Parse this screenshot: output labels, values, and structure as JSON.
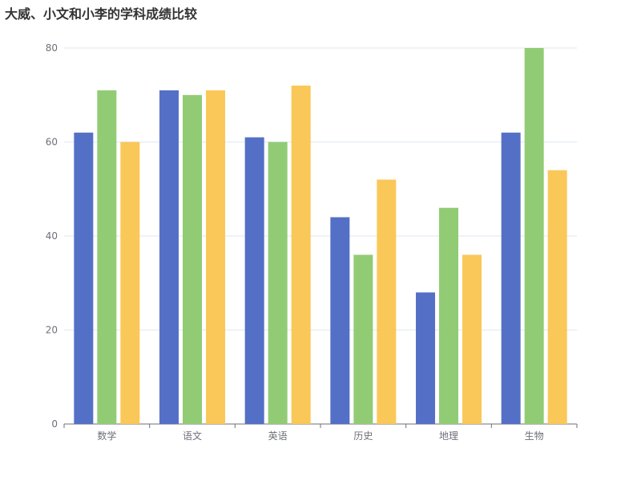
{
  "chart_data": {
    "type": "bar",
    "title": "大威、小文和小李的学科成绩比较",
    "categories": [
      "数学",
      "语文",
      "英语",
      "历史",
      "地理",
      "生物"
    ],
    "series": [
      {
        "values": [
          62,
          71,
          61,
          44,
          28,
          62
        ],
        "color": "#5470c6"
      },
      {
        "values": [
          71,
          70,
          60,
          36,
          46,
          80
        ],
        "color": "#91cc75"
      },
      {
        "values": [
          60,
          71,
          72,
          52,
          36,
          54
        ],
        "color": "#fac858"
      }
    ],
    "ylim": [
      0,
      80
    ],
    "yticks": [
      0,
      20,
      40,
      60,
      80
    ],
    "grid": true,
    "legend": "none"
  }
}
